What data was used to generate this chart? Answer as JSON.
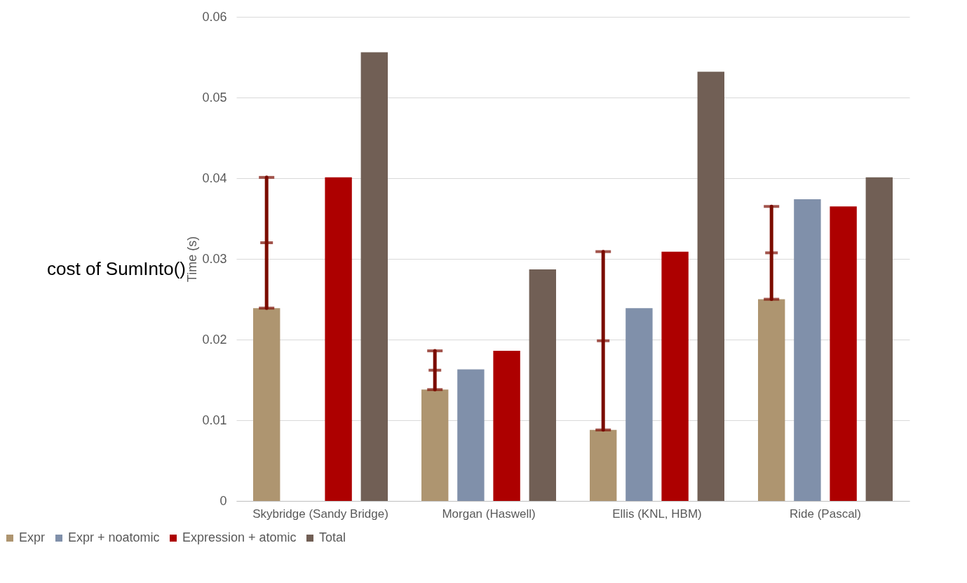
{
  "chart_data": {
    "type": "bar",
    "ylabel": "Time (s)",
    "categories": [
      "Skybridge (Sandy Bridge)",
      "Morgan (Haswell)",
      "Ellis (KNL, HBM)",
      "Ride (Pascal)"
    ],
    "series": [
      {
        "name": "Expr",
        "color": "#ae9570",
        "values": [
          0.0239,
          0.0138,
          0.0088,
          0.025
        ]
      },
      {
        "name": "Expr + noatomic",
        "color": "#8090aa",
        "values": [
          null,
          0.0163,
          0.0239,
          0.0374
        ]
      },
      {
        "name": "Expression + atomic",
        "color": "#ad0000",
        "values": [
          0.0401,
          0.0186,
          0.0309,
          0.0365
        ]
      },
      {
        "name": "Total",
        "color": "#715f55",
        "values": [
          0.0556,
          0.0287,
          0.0532,
          0.0401
        ]
      }
    ],
    "ylim": [
      0,
      0.06
    ],
    "yticks": [
      0,
      0.01,
      0.02,
      0.03,
      0.04,
      0.05,
      0.06
    ],
    "grid": "y",
    "legend": "bottom",
    "annotations": [
      "cost of SumInto()"
    ]
  }
}
